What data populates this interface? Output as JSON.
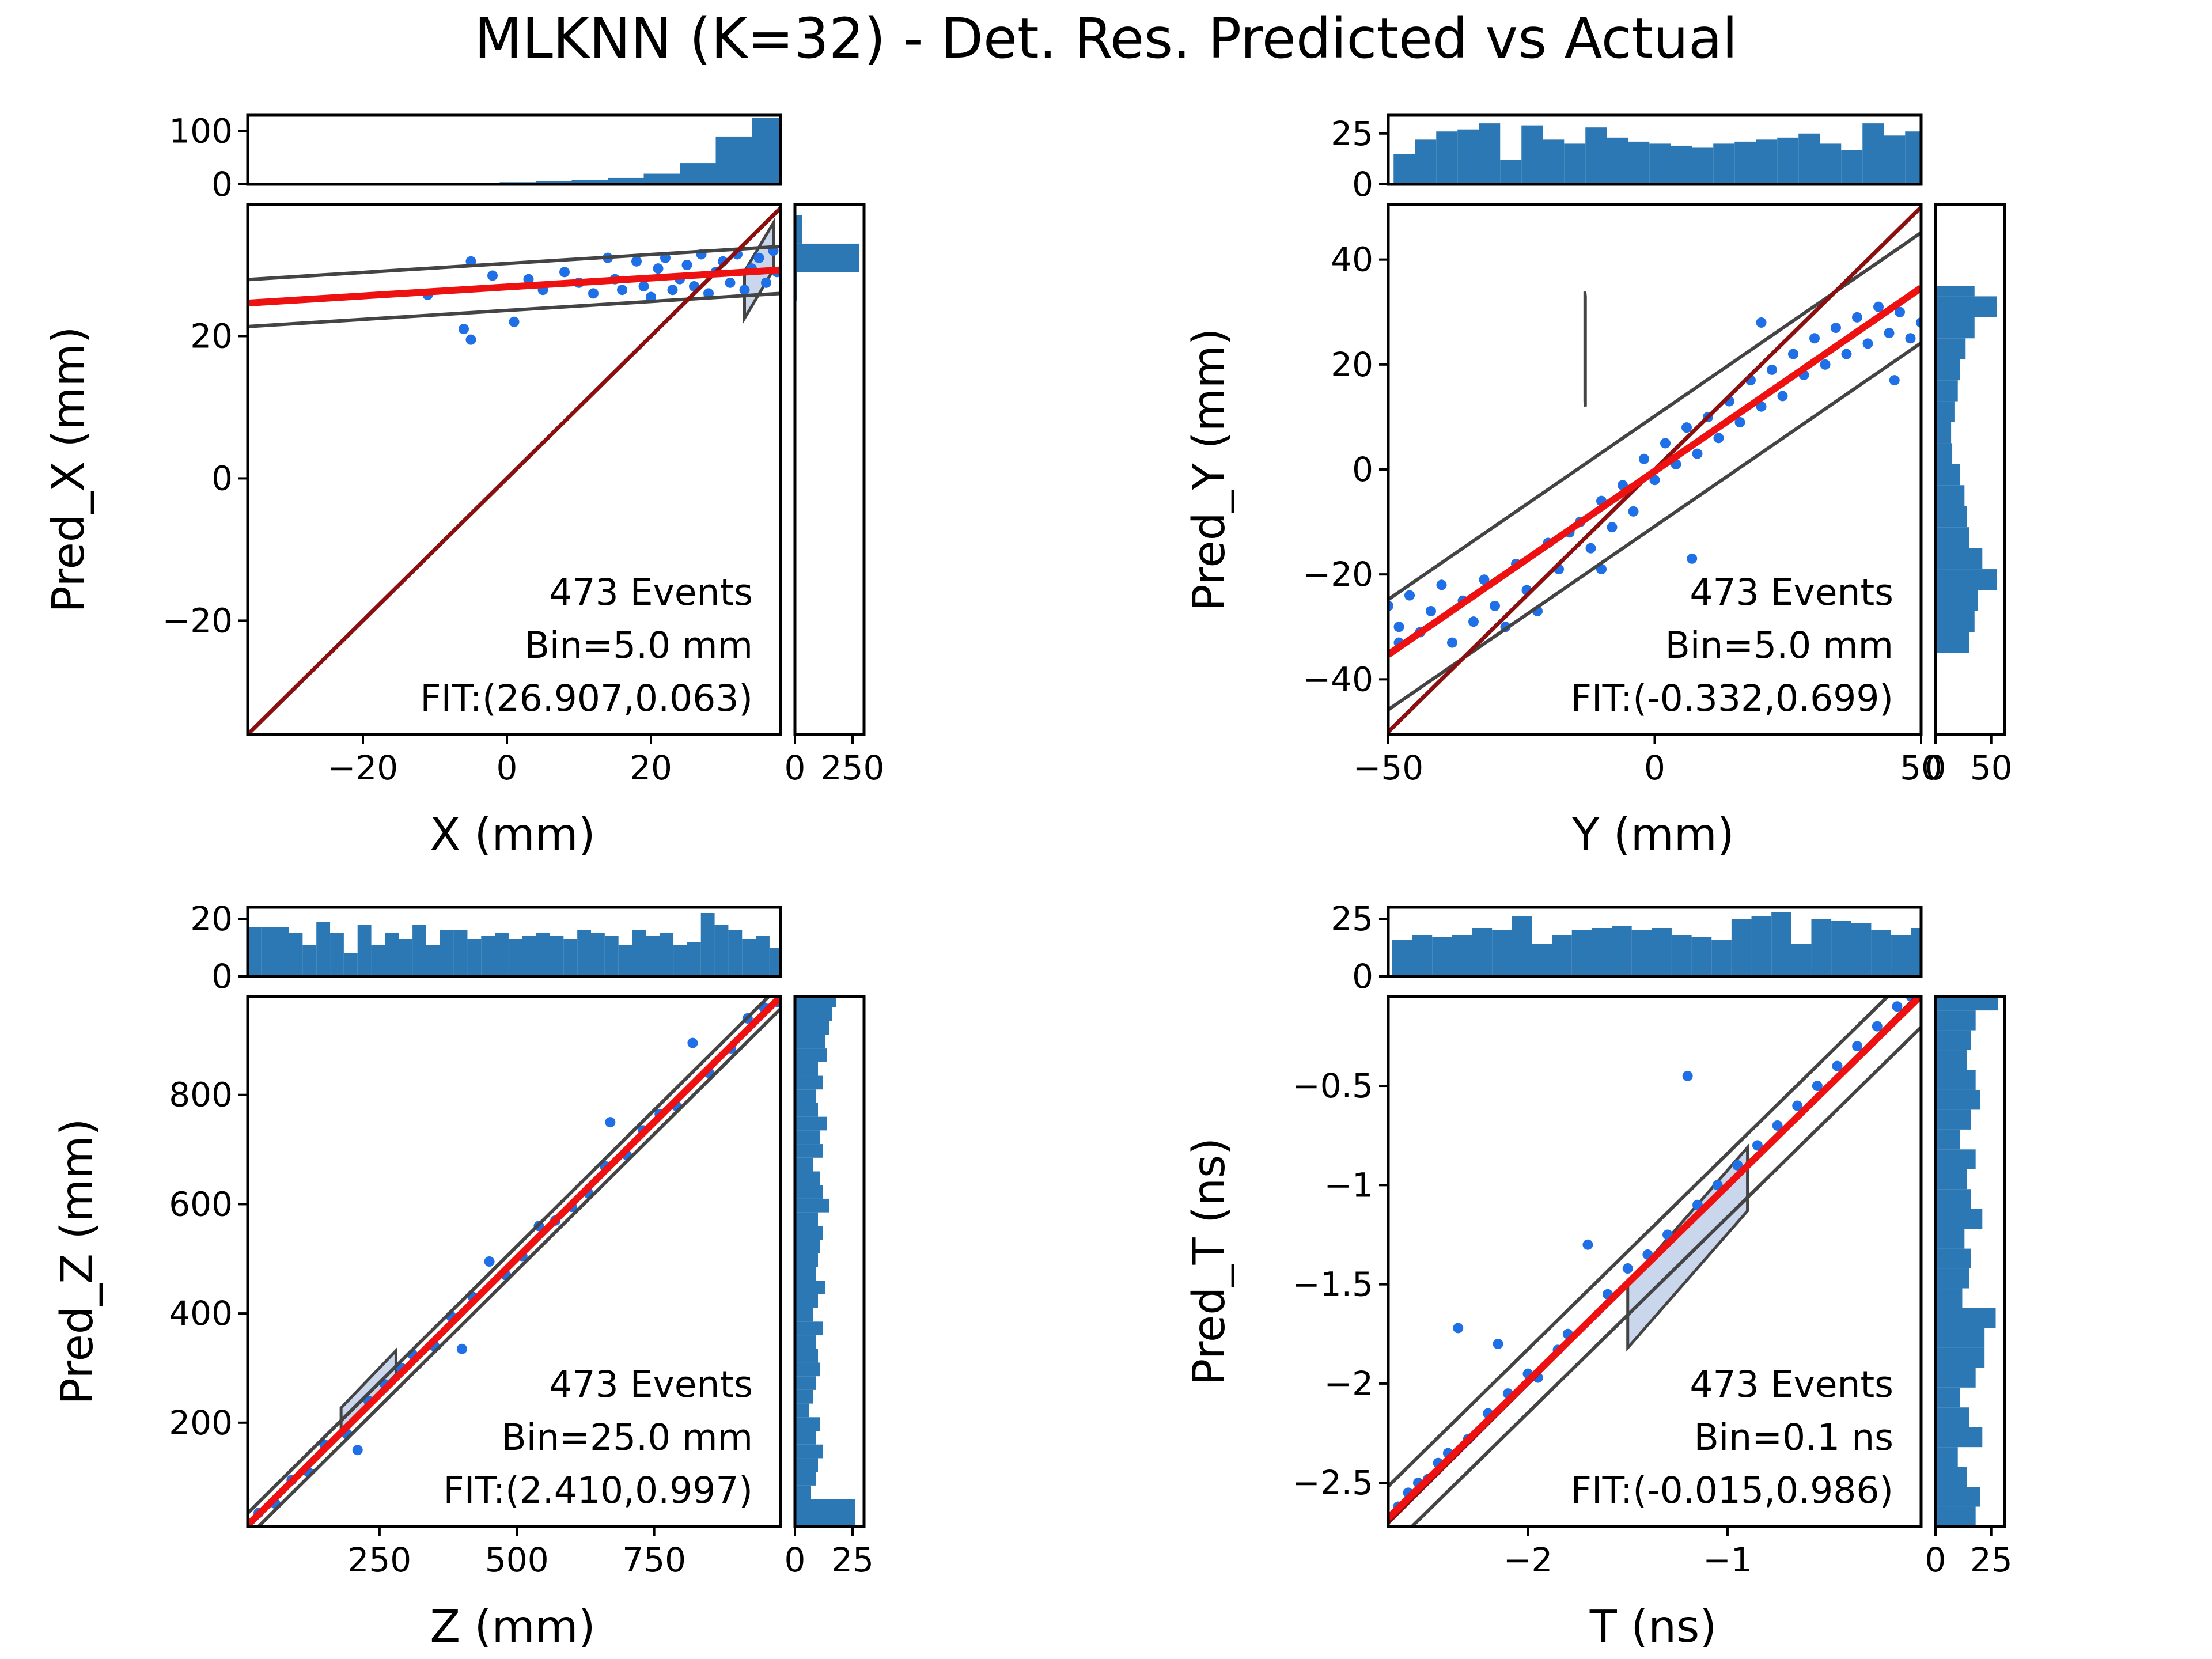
{
  "figure_title": "MLKNN (K=32) - Det. Res. Predicted vs Actual",
  "colors": {
    "points": "#1f6fe6",
    "fit_line": "#ee1111",
    "identity_line": "#8b0f0f",
    "band": "#444444",
    "band_fill": "#b7c8e6",
    "hist": "#2b78b5"
  },
  "chart_data": [
    {
      "type": "scatter",
      "xlabel": "X (mm)",
      "ylabel": "Pred_X (mm)",
      "xlim": [
        -36,
        38
      ],
      "ylim": [
        -36,
        38.5
      ],
      "xticks": [
        -20,
        0,
        20
      ],
      "yticks": [
        -20,
        0,
        20
      ],
      "annotations": [
        "473 Events",
        "Bin=5.0 mm",
        "FIT:(26.907,0.063)"
      ],
      "fit": {
        "intercept": 26.907,
        "slope": 0.063
      },
      "band_half_width": 3.3,
      "highlight_box": [
        [
          33,
          25.8
        ],
        [
          37,
          32.6
        ]
      ],
      "scatter_points": [
        [
          -11,
          25.8
        ],
        [
          -6,
          21
        ],
        [
          -5,
          19.5
        ],
        [
          -5,
          30.5
        ],
        [
          -2,
          28.5
        ],
        [
          1,
          22
        ],
        [
          3,
          28
        ],
        [
          5,
          26.5
        ],
        [
          8,
          29
        ],
        [
          10,
          27.5
        ],
        [
          12,
          26
        ],
        [
          14,
          31
        ],
        [
          15,
          28
        ],
        [
          16,
          26.5
        ],
        [
          18,
          30.5
        ],
        [
          19,
          27
        ],
        [
          20,
          25.5
        ],
        [
          21,
          29.5
        ],
        [
          22,
          31
        ],
        [
          23,
          26.5
        ],
        [
          24,
          28
        ],
        [
          25,
          30
        ],
        [
          26,
          27
        ],
        [
          27,
          31.5
        ],
        [
          28,
          26
        ],
        [
          29,
          29
        ],
        [
          30,
          30.5
        ],
        [
          31,
          27.5
        ],
        [
          32,
          31.5
        ],
        [
          33,
          26.5
        ],
        [
          34,
          29.5
        ],
        [
          35,
          31
        ],
        [
          36,
          27.5
        ],
        [
          37,
          32
        ],
        [
          37.5,
          29
        ]
      ],
      "marg_top": {
        "ylim": [
          0,
          130
        ],
        "yticks": [
          0,
          100
        ],
        "edges": [
          -6,
          -1,
          4,
          9,
          14,
          19,
          24,
          29,
          34,
          38
        ],
        "counts": [
          2,
          4,
          6,
          8,
          12,
          20,
          40,
          90,
          125
        ]
      },
      "marg_right": {
        "xlim": [
          0,
          300
        ],
        "xticks": [
          0,
          250
        ],
        "tick_labels": [
          "0",
          "250"
        ],
        "edges": [
          25,
          29,
          33,
          37
        ],
        "counts": [
          10,
          280,
          30
        ]
      }
    },
    {
      "type": "scatter",
      "xlabel": "Y (mm)",
      "ylabel": "Pred_Y (mm)",
      "xlim": [
        -50,
        50
      ],
      "ylim": [
        -50.5,
        50.5
      ],
      "xticks": [
        -50,
        0,
        50
      ],
      "yticks": [
        -40,
        -20,
        0,
        20,
        40
      ],
      "annotations": [
        "473 Events",
        "Bin=5.0 mm",
        "FIT:(-0.332,0.699)"
      ],
      "fit": {
        "intercept": -0.332,
        "slope": 0.699
      },
      "band_half_width": 10.5,
      "highlight_box": [
        [
          -13,
          22.5
        ],
        [
          -13.1,
          23.4
        ]
      ],
      "scatter_points": [
        [
          -50,
          -26
        ],
        [
          -48,
          -30
        ],
        [
          -46,
          -24
        ],
        [
          -44,
          -31
        ],
        [
          -42,
          -27
        ],
        [
          -40,
          -22
        ],
        [
          -38,
          -33
        ],
        [
          -36,
          -25
        ],
        [
          -34,
          -29
        ],
        [
          -32,
          -21
        ],
        [
          -30,
          -26
        ],
        [
          -28,
          -30
        ],
        [
          -26,
          -18
        ],
        [
          -24,
          -23
        ],
        [
          -22,
          -27
        ],
        [
          -20,
          -14
        ],
        [
          -18,
          -19
        ],
        [
          -16,
          -12
        ],
        [
          -14,
          -10
        ],
        [
          -12,
          -15
        ],
        [
          -10,
          -6
        ],
        [
          -8,
          -11
        ],
        [
          -6,
          -3
        ],
        [
          -4,
          -8
        ],
        [
          -2,
          2
        ],
        [
          0,
          -2
        ],
        [
          2,
          5
        ],
        [
          4,
          1
        ],
        [
          6,
          8
        ],
        [
          8,
          3
        ],
        [
          10,
          10
        ],
        [
          12,
          6
        ],
        [
          14,
          13
        ],
        [
          16,
          9
        ],
        [
          18,
          17
        ],
        [
          20,
          12
        ],
        [
          22,
          19
        ],
        [
          24,
          14
        ],
        [
          26,
          22
        ],
        [
          28,
          18
        ],
        [
          30,
          25
        ],
        [
          32,
          20
        ],
        [
          34,
          27
        ],
        [
          36,
          22
        ],
        [
          38,
          29
        ],
        [
          40,
          24
        ],
        [
          42,
          31
        ],
        [
          44,
          26
        ],
        [
          46,
          30
        ],
        [
          48,
          25
        ],
        [
          50,
          28
        ],
        [
          -48,
          -33
        ],
        [
          -10,
          -19
        ],
        [
          7,
          -17
        ],
        [
          20,
          28
        ],
        [
          45,
          17
        ]
      ],
      "marg_top": {
        "ylim": [
          0,
          34
        ],
        "yticks": [
          0,
          25
        ],
        "edges": [
          -49,
          -45,
          -41,
          -37,
          -33,
          -29,
          -25,
          -21,
          -17,
          -13,
          -9,
          -5,
          -1,
          3,
          7,
          11,
          15,
          19,
          23,
          27,
          31,
          35,
          39,
          43,
          47,
          50
        ],
        "counts": [
          15,
          22,
          26,
          27,
          30,
          12,
          29,
          22,
          20,
          28,
          23,
          21,
          20,
          19,
          18,
          20,
          21,
          22,
          23,
          25,
          20,
          17,
          30,
          24,
          26
        ]
      },
      "marg_right": {
        "xlim": [
          0,
          62
        ],
        "xticks": [
          0,
          50
        ],
        "tick_labels": [
          "0",
          "50"
        ],
        "edges": [
          -35,
          -31,
          -27,
          -23,
          -19,
          -15,
          -11,
          -7,
          -3,
          1,
          5,
          9,
          13,
          17,
          21,
          25,
          29,
          33,
          35
        ],
        "counts": [
          30,
          35,
          38,
          55,
          42,
          30,
          28,
          26,
          22,
          15,
          14,
          17,
          20,
          22,
          27,
          35,
          55,
          35
        ]
      }
    },
    {
      "type": "scatter",
      "xlabel": "Z (mm)",
      "ylabel": "Pred_Z (mm)",
      "xlim": [
        10,
        980
      ],
      "ylim": [
        10,
        980
      ],
      "xticks": [
        250,
        500,
        750
      ],
      "yticks": [
        200,
        400,
        600,
        800
      ],
      "annotations": [
        "473 Events",
        "Bin=25.0 mm",
        "FIT:(2.410,0.997)"
      ],
      "fit": {
        "intercept": 2.41,
        "slope": 0.997
      },
      "band_half_width": 22,
      "highlight_box": [
        [
          180,
          205
        ],
        [
          280,
          310
        ]
      ],
      "scatter_points": [
        [
          30,
          35
        ],
        [
          60,
          52
        ],
        [
          90,
          95
        ],
        [
          120,
          110
        ],
        [
          150,
          160
        ],
        [
          190,
          180
        ],
        [
          210,
          150
        ],
        [
          230,
          240
        ],
        [
          260,
          270
        ],
        [
          290,
          300
        ],
        [
          310,
          325
        ],
        [
          350,
          340
        ],
        [
          380,
          395
        ],
        [
          400,
          335
        ],
        [
          420,
          430
        ],
        [
          450,
          495
        ],
        [
          480,
          470
        ],
        [
          510,
          505
        ],
        [
          540,
          560
        ],
        [
          570,
          570
        ],
        [
          600,
          595
        ],
        [
          630,
          620
        ],
        [
          660,
          670
        ],
        [
          670,
          750
        ],
        [
          700,
          690
        ],
        [
          730,
          735
        ],
        [
          760,
          765
        ],
        [
          790,
          780
        ],
        [
          820,
          895
        ],
        [
          850,
          840
        ],
        [
          890,
          885
        ],
        [
          920,
          940
        ],
        [
          950,
          960
        ],
        [
          975,
          970
        ]
      ],
      "marg_top": {
        "ylim": [
          0,
          24
        ],
        "yticks": [
          0,
          20
        ],
        "edges": [
          10,
          35,
          60,
          85,
          110,
          135,
          160,
          185,
          210,
          235,
          260,
          285,
          310,
          335,
          360,
          385,
          410,
          435,
          460,
          485,
          510,
          535,
          560,
          585,
          610,
          635,
          660,
          685,
          710,
          735,
          760,
          785,
          810,
          835,
          860,
          885,
          910,
          935,
          960,
          980
        ],
        "counts": [
          17,
          17,
          17,
          15,
          11,
          19,
          15,
          8,
          18,
          11,
          15,
          13,
          18,
          11,
          16,
          16,
          13,
          14,
          15,
          13,
          14,
          15,
          14,
          13,
          16,
          15,
          14,
          11,
          16,
          14,
          15,
          11,
          12,
          22,
          18,
          16,
          13,
          14,
          10
        ]
      },
      "marg_right": {
        "xlim": [
          0,
          30
        ],
        "xticks": [
          0,
          25
        ],
        "tick_labels": [
          "0",
          "25"
        ],
        "edges": [
          10,
          35,
          60,
          85,
          110,
          135,
          160,
          185,
          210,
          235,
          260,
          285,
          310,
          335,
          360,
          385,
          410,
          435,
          460,
          485,
          510,
          535,
          560,
          585,
          610,
          635,
          660,
          685,
          710,
          735,
          760,
          785,
          810,
          835,
          860,
          885,
          910,
          935,
          960,
          980
        ],
        "counts": [
          26,
          26,
          7,
          9,
          10,
          12,
          9,
          11,
          6,
          8,
          9,
          11,
          10,
          9,
          12,
          8,
          10,
          13,
          9,
          10,
          11,
          12,
          10,
          15,
          12,
          11,
          8,
          12,
          11,
          14,
          10,
          9,
          12,
          10,
          14,
          13,
          15,
          16,
          18
        ]
      }
    },
    {
      "type": "scatter",
      "xlabel": "T (ns)",
      "ylabel": "Pred_T (ns)",
      "xlim": [
        -2.7,
        -0.03
      ],
      "ylim": [
        -2.72,
        -0.05
      ],
      "xticks": [
        -2,
        -1
      ],
      "yticks": [
        -2.5,
        -2.0,
        -1.5,
        -1.0,
        -0.5
      ],
      "annotations": [
        "473 Events",
        "Bin=0.1 ns",
        "FIT:(-0.015,0.986)"
      ],
      "fit": {
        "intercept": -0.015,
        "slope": 0.986
      },
      "band_half_width": 0.16,
      "highlight_box": [
        [
          -1.5,
          -1.66
        ],
        [
          -0.9,
          -0.97
        ]
      ],
      "scatter_points": [
        [
          -2.65,
          -2.62
        ],
        [
          -2.6,
          -2.55
        ],
        [
          -2.55,
          -2.5
        ],
        [
          -2.5,
          -2.48
        ],
        [
          -2.45,
          -2.4
        ],
        [
          -2.4,
          -2.35
        ],
        [
          -2.35,
          -1.72
        ],
        [
          -2.3,
          -2.28
        ],
        [
          -2.2,
          -2.15
        ],
        [
          -2.15,
          -1.8
        ],
        [
          -2.1,
          -2.05
        ],
        [
          -2.0,
          -1.95
        ],
        [
          -1.95,
          -1.97
        ],
        [
          -1.85,
          -1.83
        ],
        [
          -1.8,
          -1.75
        ],
        [
          -1.7,
          -1.3
        ],
        [
          -1.6,
          -1.55
        ],
        [
          -1.5,
          -1.42
        ],
        [
          -1.4,
          -1.35
        ],
        [
          -1.3,
          -1.25
        ],
        [
          -1.2,
          -0.45
        ],
        [
          -1.15,
          -1.1
        ],
        [
          -1.05,
          -1.0
        ],
        [
          -0.95,
          -0.9
        ],
        [
          -0.85,
          -0.8
        ],
        [
          -0.75,
          -0.7
        ],
        [
          -0.65,
          -0.6
        ],
        [
          -0.55,
          -0.5
        ],
        [
          -0.45,
          -0.4
        ],
        [
          -0.35,
          -0.3
        ],
        [
          -0.25,
          -0.2
        ],
        [
          -0.15,
          -0.1
        ],
        [
          -0.08,
          -0.05
        ]
      ],
      "marg_top": {
        "ylim": [
          0,
          30
        ],
        "yticks": [
          0,
          25
        ],
        "edges": [
          -2.68,
          -2.58,
          -2.48,
          -2.38,
          -2.28,
          -2.18,
          -2.08,
          -1.98,
          -1.88,
          -1.78,
          -1.68,
          -1.58,
          -1.48,
          -1.38,
          -1.28,
          -1.18,
          -1.08,
          -0.98,
          -0.88,
          -0.78,
          -0.68,
          -0.58,
          -0.48,
          -0.38,
          -0.28,
          -0.18,
          -0.08,
          -0.03
        ],
        "counts": [
          16,
          18,
          17,
          18,
          21,
          20,
          26,
          14,
          18,
          20,
          21,
          22,
          20,
          21,
          18,
          17,
          16,
          25,
          26,
          28,
          14,
          25,
          24,
          23,
          20,
          18,
          21
        ]
      },
      "marg_right": {
        "xlim": [
          0,
          31
        ],
        "xticks": [
          0,
          25
        ],
        "tick_labels": [
          "0",
          "25"
        ],
        "edges": [
          -2.72,
          -2.62,
          -2.52,
          -2.42,
          -2.32,
          -2.22,
          -2.12,
          -2.02,
          -1.92,
          -1.82,
          -1.72,
          -1.62,
          -1.52,
          -1.42,
          -1.32,
          -1.22,
          -1.12,
          -1.02,
          -0.92,
          -0.82,
          -0.72,
          -0.62,
          -0.52,
          -0.42,
          -0.32,
          -0.22,
          -0.12,
          -0.05
        ],
        "counts": [
          18,
          20,
          14,
          10,
          21,
          15,
          11,
          18,
          22,
          22,
          27,
          12,
          15,
          16,
          13,
          21,
          16,
          14,
          18,
          11,
          16,
          20,
          18,
          14,
          16,
          18,
          28
        ]
      }
    }
  ]
}
